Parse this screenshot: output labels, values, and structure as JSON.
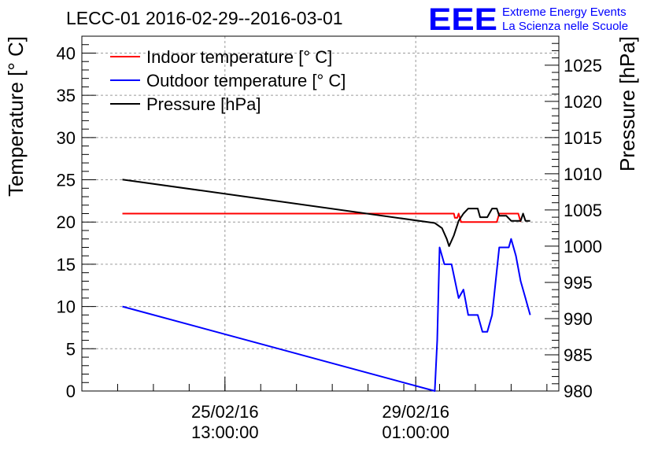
{
  "chart_data": {
    "type": "line",
    "title": "LECC-01 2016-02-29--2016-03-01",
    "ylabel": "Temperature [° C]",
    "ylabel_right": "Pressure [hPa]",
    "xlabel": "",
    "ylim": [
      0,
      42
    ],
    "ylim_right": [
      980,
      1029
    ],
    "y_ticks": [
      0,
      5,
      10,
      15,
      20,
      25,
      30,
      35,
      40
    ],
    "y_ticks_right": [
      980,
      985,
      990,
      995,
      1000,
      1005,
      1010,
      1015,
      1020,
      1025
    ],
    "x_ticks": [
      {
        "x": 0.3,
        "line1": "25/02/16",
        "line2": "13:00:00"
      },
      {
        "x": 0.7,
        "line1": "29/02/16",
        "line2": "01:00:00"
      }
    ],
    "grid": true,
    "legend_position": "top-left",
    "series": [
      {
        "name": "Indoor temperature [° C]",
        "axis": "left",
        "color": "#ff0000",
        "points": [
          [
            0.085,
            21.0
          ],
          [
            0.78,
            21.0
          ],
          [
            0.782,
            20.5
          ],
          [
            0.787,
            20.5
          ],
          [
            0.79,
            21.0
          ],
          [
            0.795,
            20.0
          ],
          [
            0.87,
            20.0
          ],
          [
            0.875,
            21.0
          ],
          [
            0.915,
            21.0
          ],
          [
            0.92,
            20.0
          ]
        ]
      },
      {
        "name": "Outdoor temperature [° C]",
        "axis": "left",
        "color": "#0000ff",
        "points": [
          [
            0.085,
            10.0
          ],
          [
            0.74,
            0.0
          ],
          [
            0.745,
            6.0
          ],
          [
            0.75,
            17.0
          ],
          [
            0.76,
            15.0
          ],
          [
            0.775,
            15.0
          ],
          [
            0.79,
            11.0
          ],
          [
            0.8,
            12.0
          ],
          [
            0.81,
            9.0
          ],
          [
            0.83,
            9.0
          ],
          [
            0.84,
            7.0
          ],
          [
            0.85,
            7.0
          ],
          [
            0.86,
            9.0
          ],
          [
            0.875,
            17.0
          ],
          [
            0.895,
            17.0
          ],
          [
            0.9,
            18.0
          ],
          [
            0.91,
            16.0
          ],
          [
            0.92,
            13.0
          ],
          [
            0.93,
            11.0
          ],
          [
            0.94,
            9.0
          ]
        ]
      },
      {
        "name": "Pressure [hPa]",
        "axis": "right",
        "color": "#000000",
        "points": [
          [
            0.085,
            1009.2
          ],
          [
            0.74,
            1003.2
          ],
          [
            0.755,
            1002.5
          ],
          [
            0.765,
            1001.0
          ],
          [
            0.77,
            1000.0
          ],
          [
            0.78,
            1001.5
          ],
          [
            0.79,
            1003.5
          ],
          [
            0.8,
            1004.5
          ],
          [
            0.81,
            1005.2
          ],
          [
            0.83,
            1005.2
          ],
          [
            0.835,
            1004.0
          ],
          [
            0.85,
            1004.0
          ],
          [
            0.86,
            1005.2
          ],
          [
            0.87,
            1005.2
          ],
          [
            0.875,
            1004.2
          ],
          [
            0.89,
            1004.2
          ],
          [
            0.9,
            1003.5
          ],
          [
            0.92,
            1003.5
          ],
          [
            0.925,
            1004.5
          ],
          [
            0.93,
            1003.5
          ],
          [
            0.94,
            1003.5
          ]
        ]
      }
    ]
  },
  "logo": {
    "mark": "EEE",
    "line1": "Extreme Energy Events",
    "line2": "La Scienza nelle Scuole",
    "color": "#0000ff"
  }
}
